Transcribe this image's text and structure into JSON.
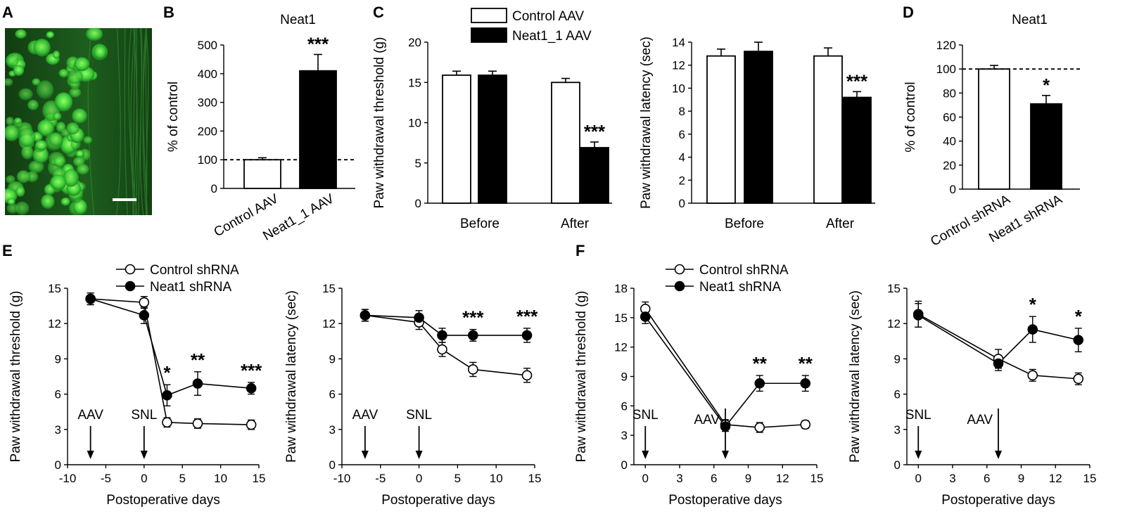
{
  "colors": {
    "micrograph": "#1f6a1f",
    "control": "#ffffff",
    "treatment": "#000000"
  },
  "panels": {
    "A": {
      "label": "A"
    },
    "B": {
      "label": "B"
    },
    "C": {
      "label": "C"
    },
    "D": {
      "label": "D"
    },
    "E": {
      "label": "E"
    },
    "F": {
      "label": "F"
    }
  },
  "chart_data": [
    {
      "id": "B",
      "type": "bar",
      "title": "Neat1",
      "ylabel": "% of control",
      "xlabel": "",
      "categories": [
        "Control AAV",
        "Neat1_1 AAV"
      ],
      "values": [
        100,
        410
      ],
      "errors": [
        7,
        57
      ],
      "ylim": [
        0,
        500
      ],
      "yticks": [
        "0",
        "100",
        "200",
        "300",
        "400",
        "500"
      ],
      "reference_line": 100,
      "significance": [
        "",
        "***"
      ]
    },
    {
      "id": "C1",
      "type": "bar",
      "title": "",
      "ylabel": "Paw withdrawal threshold (g)",
      "xlabel": "",
      "categories": [
        "Before",
        "After"
      ],
      "series": [
        {
          "name": "Control AAV",
          "values": [
            15.9,
            15.0
          ],
          "errors": [
            0.5,
            0.5
          ]
        },
        {
          "name": "Neat1_1 AAV",
          "values": [
            15.9,
            6.9
          ],
          "errors": [
            0.5,
            0.7
          ]
        }
      ],
      "ylim": [
        0,
        20
      ],
      "yticks": [
        "0",
        "5",
        "10",
        "15",
        "20"
      ],
      "significance": [
        "",
        "***"
      ]
    },
    {
      "id": "C2",
      "type": "bar",
      "title": "",
      "ylabel": "Paw withdrawal latency (sec)",
      "xlabel": "",
      "categories": [
        "Before",
        "After"
      ],
      "series": [
        {
          "name": "Control AAV",
          "values": [
            12.8,
            12.8
          ],
          "errors": [
            0.6,
            0.7
          ]
        },
        {
          "name": "Neat1_1 AAV",
          "values": [
            13.2,
            9.2
          ],
          "errors": [
            0.8,
            0.5
          ]
        }
      ],
      "ylim": [
        0,
        14
      ],
      "yticks": [
        "0",
        "2",
        "4",
        "6",
        "8",
        "10",
        "12",
        "14"
      ],
      "significance": [
        "",
        "***"
      ]
    },
    {
      "id": "D",
      "type": "bar",
      "title": "Neat1",
      "ylabel": "% of control",
      "xlabel": "",
      "categories": [
        "Control shRNA",
        "Neat1 shRNA"
      ],
      "values": [
        100,
        71
      ],
      "errors": [
        3,
        7
      ],
      "ylim": [
        0,
        120
      ],
      "yticks": [
        "0",
        "20",
        "40",
        "60",
        "80",
        "100",
        "120"
      ],
      "reference_line": 100,
      "significance": [
        "",
        "*"
      ]
    },
    {
      "id": "E1",
      "type": "line",
      "title": "",
      "ylabel": "Paw withdrawal threshold (g)",
      "xlabel": "Postoperative days",
      "x": [
        -7,
        0,
        3,
        7,
        14
      ],
      "series": [
        {
          "name": "Control shRNA",
          "values": [
            14.1,
            13.8,
            3.6,
            3.5,
            3.4
          ],
          "errors": [
            0.5,
            0.5,
            0.4,
            0.4,
            0.4
          ]
        },
        {
          "name": "Neat1 shRNA",
          "values": [
            14.1,
            12.7,
            5.9,
            6.9,
            6.5
          ],
          "errors": [
            0.5,
            0.7,
            0.9,
            1.0,
            0.5
          ]
        }
      ],
      "xlim": [
        -10,
        15
      ],
      "ylim": [
        0,
        15
      ],
      "xticks": [
        "-10",
        "-5",
        "0",
        "5",
        "10",
        "15"
      ],
      "yticks": [
        "0",
        "3",
        "6",
        "9",
        "12",
        "15"
      ],
      "significance": [
        "",
        "",
        "*",
        "**",
        "***"
      ],
      "annotations": [
        {
          "text": "AAV",
          "x": -7
        },
        {
          "text": "SNL",
          "x": 0
        }
      ]
    },
    {
      "id": "E2",
      "type": "line",
      "title": "",
      "ylabel": "Paw withdrawal latency (sec)",
      "xlabel": "Postoperative days",
      "x": [
        -7,
        0,
        3,
        7,
        14
      ],
      "series": [
        {
          "name": "Control shRNA",
          "values": [
            12.7,
            12.1,
            9.8,
            8.1,
            7.6
          ],
          "errors": [
            0.5,
            0.6,
            0.6,
            0.6,
            0.6
          ]
        },
        {
          "name": "Neat1 shRNA",
          "values": [
            12.7,
            12.5,
            11.0,
            11.0,
            11.0
          ],
          "errors": [
            0.5,
            0.6,
            0.6,
            0.5,
            0.6
          ]
        }
      ],
      "xlim": [
        -10,
        15
      ],
      "ylim": [
        0,
        15
      ],
      "xticks": [
        "-10",
        "-5",
        "0",
        "5",
        "10",
        "15"
      ],
      "yticks": [
        "0",
        "3",
        "6",
        "9",
        "12",
        "15"
      ],
      "significance": [
        "",
        "",
        "",
        "***",
        "***"
      ],
      "annotations": [
        {
          "text": "AAV",
          "x": -7
        },
        {
          "text": "SNL",
          "x": 0
        }
      ]
    },
    {
      "id": "F1",
      "type": "line",
      "title": "",
      "ylabel": "Paw withdrawal threshold (g)",
      "xlabel": "Postoperative days",
      "x": [
        0,
        7,
        10,
        14
      ],
      "series": [
        {
          "name": "Control shRNA",
          "values": [
            15.9,
            4.1,
            3.8,
            4.1
          ],
          "errors": [
            0.7,
            0.5,
            0.5,
            0.4
          ]
        },
        {
          "name": "Neat1 shRNA",
          "values": [
            15.1,
            3.9,
            8.3,
            8.3
          ],
          "errors": [
            0.7,
            0.5,
            0.8,
            0.8
          ]
        }
      ],
      "xlim": [
        -1,
        15
      ],
      "ylim": [
        0,
        18
      ],
      "xticks": [
        "0",
        "3",
        "6",
        "9",
        "12",
        "15"
      ],
      "yticks": [
        "0",
        "3",
        "6",
        "9",
        "12",
        "15",
        "18"
      ],
      "significance": [
        "",
        "",
        "**",
        "**"
      ],
      "annotations": [
        {
          "text": "SNL",
          "x": 0
        },
        {
          "text": "AAV",
          "x": 7
        }
      ]
    },
    {
      "id": "F2",
      "type": "line",
      "title": "",
      "ylabel": "Paw withdrawal latency (sec)",
      "xlabel": "Postoperative days",
      "x": [
        0,
        7,
        10,
        14
      ],
      "series": [
        {
          "name": "Control shRNA",
          "values": [
            12.8,
            9.0,
            7.6,
            7.3
          ],
          "errors": [
            1.1,
            0.8,
            0.5,
            0.5
          ]
        },
        {
          "name": "Neat1 shRNA",
          "values": [
            12.7,
            8.6,
            11.5,
            10.6
          ],
          "errors": [
            1.0,
            0.6,
            1.1,
            1.0
          ]
        }
      ],
      "xlim": [
        -1,
        15
      ],
      "ylim": [
        0,
        15
      ],
      "xticks": [
        "0",
        "3",
        "6",
        "9",
        "12",
        "15"
      ],
      "yticks": [
        "0",
        "3",
        "6",
        "9",
        "12",
        "15"
      ],
      "significance": [
        "",
        "",
        "*",
        "*"
      ],
      "annotations": [
        {
          "text": "SNL",
          "x": 0
        },
        {
          "text": "AAV",
          "x": 7
        }
      ]
    }
  ]
}
